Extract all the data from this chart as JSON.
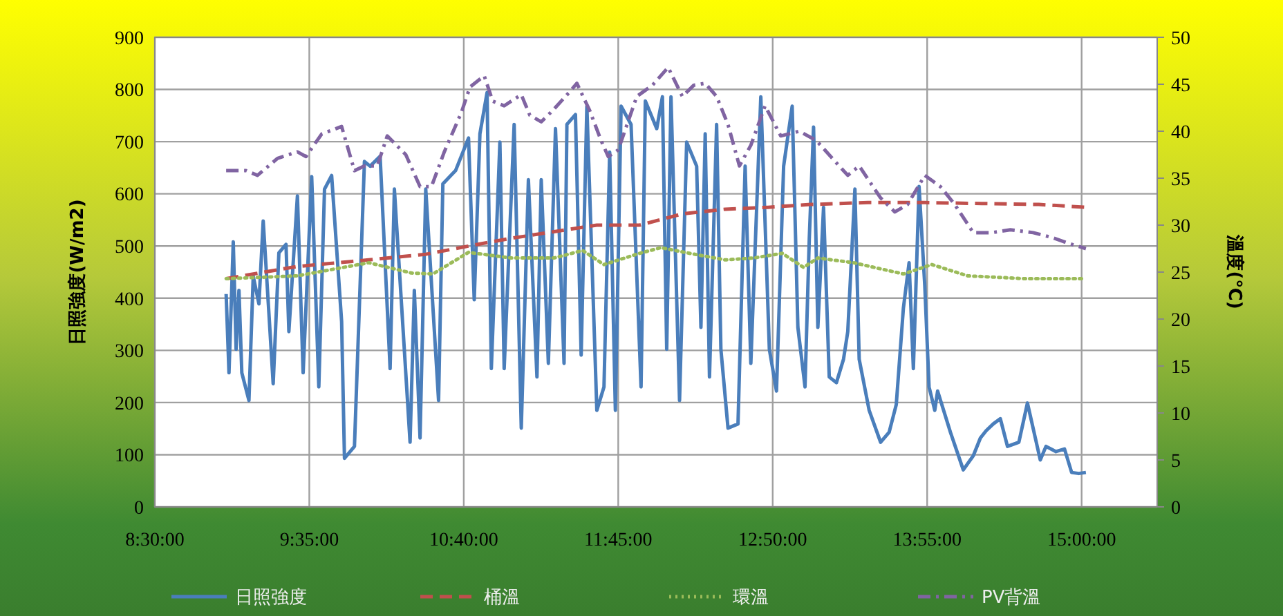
{
  "chart_data": {
    "type": "line",
    "ylabel": "日照強度(W/m2)",
    "y2label": "溫度(℃)",
    "xlim": [
      8.5,
      15.53
    ],
    "xticks": [
      {
        "value": 8.5,
        "label": "8:30:00"
      },
      {
        "value": 9.5833,
        "label": "9:35:00"
      },
      {
        "value": 10.6667,
        "label": "10:40:00"
      },
      {
        "value": 11.75,
        "label": "11:45:00"
      },
      {
        "value": 12.8333,
        "label": "12:50:00"
      },
      {
        "value": 13.9167,
        "label": "13:55:00"
      },
      {
        "value": 15,
        "label": "15:00:00"
      }
    ],
    "ylim": [
      0,
      900
    ],
    "yticks": [
      0,
      100,
      200,
      300,
      400,
      500,
      600,
      700,
      800,
      900
    ],
    "y2lim": [
      0,
      50
    ],
    "y2ticks": [
      0,
      5,
      10,
      15,
      20,
      25,
      30,
      35,
      40,
      45,
      50
    ],
    "grid": true,
    "legend": "bottom",
    "marker": "none",
    "series": [
      {
        "name": "日照強度",
        "color": "#4a7ebb",
        "line_style": "solid",
        "x": [
          9.0,
          9.02,
          9.05,
          9.07,
          9.09,
          9.11,
          9.16,
          9.19,
          9.23,
          9.26,
          9.3,
          9.33,
          9.37,
          9.42,
          9.44,
          9.5,
          9.54,
          9.6,
          9.65,
          9.69,
          9.74,
          9.81,
          9.83,
          9.9,
          9.97,
          10.01,
          10.08,
          10.15,
          10.18,
          10.29,
          10.32,
          10.36,
          10.4,
          10.49,
          10.52,
          10.61,
          10.7,
          10.74,
          10.78,
          10.83,
          10.86,
          10.92,
          10.95,
          11.02,
          11.07,
          11.12,
          11.18,
          11.21,
          11.26,
          11.31,
          11.37,
          11.39,
          11.45,
          11.49,
          11.53,
          11.6,
          11.65,
          11.69,
          11.73,
          11.77,
          11.84,
          11.91,
          11.94,
          12.02,
          12.06,
          12.09,
          12.12,
          12.18,
          12.23,
          12.3,
          12.33,
          12.36,
          12.39,
          12.44,
          12.47,
          12.52,
          12.59,
          12.64,
          12.68,
          12.75,
          12.81,
          12.86,
          12.91,
          12.97,
          13.01,
          13.06,
          13.09,
          13.12,
          13.15,
          13.19,
          13.23,
          13.28,
          13.33,
          13.36,
          13.41,
          13.44,
          13.51,
          13.59,
          13.65,
          13.7,
          13.75,
          13.79,
          13.82,
          13.86,
          13.9,
          13.93,
          13.97,
          13.99,
          14.08,
          14.17,
          14.24,
          14.29,
          14.33,
          14.38,
          14.43,
          14.48,
          14.56,
          14.62,
          14.71,
          14.75,
          14.82,
          14.88,
          14.93,
          14.98,
          15.03
        ],
        "values": [
          408,
          257,
          508,
          302,
          415,
          257,
          204,
          442,
          389,
          548,
          371,
          236,
          487,
          503,
          336,
          596,
          257,
          633,
          230,
          609,
          635,
          355,
          93,
          116,
          662,
          653,
          672,
          265,
          609,
          124,
          415,
          132,
          609,
          204,
          619,
          645,
          707,
          397,
          715,
          794,
          265,
          699,
          265,
          733,
          151,
          627,
          249,
          627,
          275,
          725,
          275,
          733,
          752,
          291,
          768,
          185,
          230,
          680,
          185,
          768,
          733,
          230,
          778,
          725,
          786,
          302,
          786,
          204,
          699,
          653,
          344,
          715,
          249,
          733,
          302,
          151,
          159,
          653,
          275,
          786,
          302,
          222,
          653,
          768,
          344,
          230,
          514,
          728,
          344,
          574,
          249,
          238,
          283,
          336,
          609,
          283,
          185,
          124,
          143,
          196,
          381,
          468,
          265,
          614,
          424,
          230,
          185,
          222,
          143,
          71,
          98,
          132,
          146,
          159,
          169,
          116,
          124,
          199,
          90,
          116,
          106,
          111,
          66,
          64,
          66
        ]
      },
      {
        "name": "桶溫",
        "color": "#c0504d",
        "line_style": "dashed",
        "axis": "y2",
        "x": [
          9.0,
          9.5,
          10.0,
          10.4,
          10.78,
          11.0,
          11.3,
          11.6,
          11.9,
          12.2,
          12.5,
          12.8,
          13.1,
          13.5,
          13.9,
          14.3,
          14.7,
          15.03
        ],
        "values": [
          24.3,
          25.6,
          26.3,
          26.9,
          28.0,
          28.6,
          29.3,
          30.0,
          30.0,
          31.2,
          31.7,
          31.9,
          32.2,
          32.4,
          32.4,
          32.3,
          32.2,
          31.9
        ]
      },
      {
        "name": "環溫",
        "color": "#9bbb59",
        "line_style": "dotted",
        "axis": "y2",
        "x": [
          9.0,
          9.5,
          10.0,
          10.3,
          10.45,
          10.7,
          11.0,
          11.3,
          11.5,
          11.65,
          11.9,
          12.05,
          12.25,
          12.5,
          12.7,
          12.9,
          13.05,
          13.15,
          13.4,
          13.75,
          13.95,
          14.2,
          14.6,
          15.0
        ],
        "values": [
          24.3,
          24.6,
          26.0,
          24.9,
          24.8,
          27.1,
          26.5,
          26.5,
          27.3,
          25.8,
          27.0,
          27.6,
          27.0,
          26.3,
          26.5,
          27.0,
          25.5,
          26.5,
          26.0,
          24.8,
          25.8,
          24.6,
          24.3,
          24.3
        ]
      },
      {
        "name": "PV背溫",
        "color": "#8064a2",
        "line_style": "dashdot",
        "axis": "y2",
        "x": [
          9.0,
          9.14,
          9.22,
          9.36,
          9.5,
          9.56,
          9.67,
          9.81,
          9.9,
          9.97,
          10.06,
          10.13,
          10.26,
          10.36,
          10.44,
          10.53,
          10.65,
          10.71,
          10.81,
          10.87,
          10.95,
          11.07,
          11.13,
          11.21,
          11.29,
          11.41,
          11.46,
          11.55,
          11.63,
          11.68,
          11.75,
          11.88,
          11.99,
          12.1,
          12.2,
          12.28,
          12.36,
          12.44,
          12.52,
          12.6,
          12.68,
          12.78,
          12.89,
          13.02,
          13.14,
          13.27,
          13.36,
          13.44,
          13.59,
          13.69,
          13.78,
          13.9,
          14.01,
          14.11,
          14.24,
          14.37,
          14.5,
          14.66,
          14.79,
          14.92,
          15.03
        ],
        "values": [
          35.8,
          35.8,
          35.3,
          37.1,
          37.8,
          37.3,
          39.7,
          40.5,
          35.8,
          36.3,
          36.3,
          39.5,
          37.5,
          34.1,
          34.1,
          37.8,
          42.0,
          44.7,
          45.9,
          43.2,
          42.7,
          43.9,
          41.7,
          41.0,
          42.2,
          44.2,
          45.1,
          42.2,
          39.0,
          37.3,
          38.0,
          43.7,
          44.9,
          46.8,
          43.7,
          44.9,
          45.1,
          43.7,
          40.7,
          36.3,
          38.5,
          42.7,
          39.5,
          40.0,
          39.0,
          36.8,
          35.3,
          36.3,
          32.9,
          31.4,
          32.2,
          35.3,
          34.1,
          32.2,
          29.2,
          29.2,
          29.5,
          29.2,
          28.7,
          28.0,
          27.5
        ]
      }
    ]
  }
}
